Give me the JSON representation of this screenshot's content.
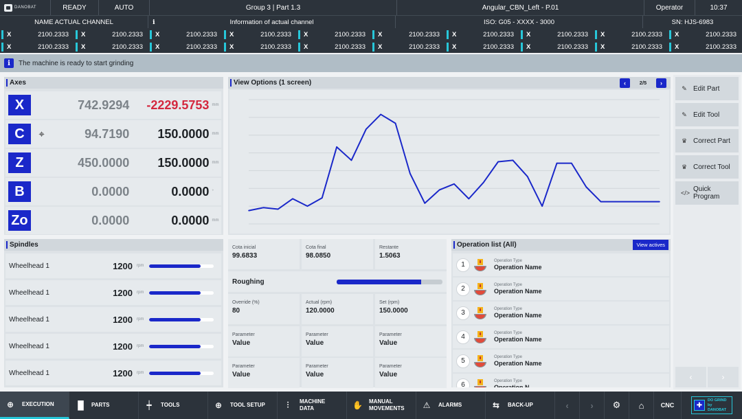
{
  "topbar": {
    "logo_text": "DANOBAT",
    "status": "READY",
    "mode": "AUTO",
    "group_part": "Group 3 | Part 1.3",
    "program": "Angular_CBN_Left - P.01",
    "user": "Operator",
    "time": "10:37"
  },
  "row2": {
    "channel": "NAME ACTUAL CHANNEL",
    "info_icon": "i",
    "info": "Information of actual channel",
    "iso": "ISO: G05 - XXXX - 3000",
    "sn": "SN: HJS-6983"
  },
  "coords": {
    "rows": [
      [
        {
          "axis": "X",
          "value": "2100.2333"
        },
        {
          "axis": "X",
          "value": "2100.2333"
        },
        {
          "axis": "X",
          "value": "2100.2333"
        },
        {
          "axis": "X",
          "value": "2100.2333"
        },
        {
          "axis": "X",
          "value": "2100.2333"
        },
        {
          "axis": "X",
          "value": "2100.2333"
        },
        {
          "axis": "X",
          "value": "2100.2333"
        },
        {
          "axis": "X",
          "value": "2100.2333"
        },
        {
          "axis": "X",
          "value": "2100.2333"
        },
        {
          "axis": "X",
          "value": "2100.2333"
        }
      ],
      [
        {
          "axis": "X",
          "value": "2100.2333"
        },
        {
          "axis": "X",
          "value": "2100.2333"
        },
        {
          "axis": "X",
          "value": "2100.2333"
        },
        {
          "axis": "X",
          "value": "2100.2333"
        },
        {
          "axis": "X",
          "value": "2100.2333"
        },
        {
          "axis": "X",
          "value": "2100.2333"
        },
        {
          "axis": "X",
          "value": "2100.2333"
        },
        {
          "axis": "X",
          "value": "2100.2333"
        },
        {
          "axis": "X",
          "value": "2100.2333"
        },
        {
          "axis": "X",
          "value": "2100.2333"
        }
      ]
    ]
  },
  "message": {
    "icon": "info-icon",
    "text": "The machine is ready to start grinding"
  },
  "axes": {
    "title": "Axes",
    "items": [
      {
        "name": "X",
        "actual": "742.9294",
        "target": "-2229.5753",
        "unit": "mm",
        "has_target_icon": false
      },
      {
        "name": "C",
        "actual": "94.7190",
        "target": "150.0000",
        "unit": "mm",
        "has_target_icon": true
      },
      {
        "name": "Z",
        "actual": "450.0000",
        "target": "150.0000",
        "unit": "mm",
        "has_target_icon": false
      },
      {
        "name": "B",
        "actual": "0.0000",
        "target": "0.0000",
        "unit": "°",
        "has_target_icon": false
      },
      {
        "name": "Zo",
        "actual": "0.0000",
        "target": "0.0000",
        "unit": "mm",
        "has_target_icon": false
      }
    ]
  },
  "spindles": {
    "title": "Spindles",
    "items": [
      {
        "name": "Wheelhead 1",
        "value": "1200",
        "unit": "rpm",
        "level": 0.8
      },
      {
        "name": "Wheelhead 1",
        "value": "1200",
        "unit": "rpm",
        "level": 0.8
      },
      {
        "name": "Wheelhead 1",
        "value": "1200",
        "unit": "rpm",
        "level": 0.8
      },
      {
        "name": "Wheelhead 1",
        "value": "1200",
        "unit": "rpm",
        "level": 0.8
      },
      {
        "name": "Wheelhead 1",
        "value": "1200",
        "unit": "rpm",
        "level": 0.8
      }
    ]
  },
  "view": {
    "title": "View Options (1 screen)",
    "page": "2/5",
    "prev": "‹",
    "next": "›"
  },
  "chart_data": {
    "type": "line",
    "title": "",
    "xlabel": "",
    "ylabel": "",
    "color": "#1a28c9",
    "grid": true,
    "x": [
      0,
      1,
      2,
      3,
      4,
      5,
      6,
      7,
      8,
      9,
      10,
      11,
      12,
      13,
      14,
      15,
      16,
      17,
      18,
      19,
      20,
      21,
      22,
      23,
      24,
      25,
      26,
      27,
      28
    ],
    "values": [
      4.5,
      5.5,
      5,
      8.5,
      6,
      8.8,
      26,
      21.5,
      32,
      37,
      34,
      17,
      7,
      11.5,
      13.5,
      8.5,
      14,
      21,
      21.5,
      16,
      6,
      20.5,
      20.5,
      12.5,
      7.5,
      7.5,
      7.5,
      7.5,
      7.5
    ],
    "ylim": [
      0,
      42
    ]
  },
  "operation": {
    "cota_inicial_label": "Cota inicial",
    "cota_inicial": "99.6833",
    "cota_final_label": "Cota final",
    "cota_final": "98.0850",
    "restante_label": "Restante",
    "restante": "1.5063",
    "phase": "Roughing",
    "phase_progress": 0.8,
    "override_label": "Override (%)",
    "override": "80",
    "actual_label": "Actual (rpm)",
    "actual": "120.0000",
    "set_label": "Set (rpm)",
    "set": "150.0000",
    "params": [
      {
        "label": "Parameter",
        "value": "Value"
      },
      {
        "label": "Parameter",
        "value": "Value"
      },
      {
        "label": "Parameter",
        "value": "Value"
      },
      {
        "label": "Parameter",
        "value": "Value"
      },
      {
        "label": "Parameter",
        "value": "Value"
      },
      {
        "label": "Parameter",
        "value": "Value"
      }
    ]
  },
  "oplist": {
    "title": "Operation list (All)",
    "view_actives": "View actives",
    "items": [
      {
        "num": "1",
        "type": "Operation Type",
        "name": "Operation Name"
      },
      {
        "num": "2",
        "type": "Operation Type",
        "name": "Operation Name"
      },
      {
        "num": "3",
        "type": "Operation Type",
        "name": "Operation Name"
      },
      {
        "num": "4",
        "type": "Operation Type",
        "name": "Operation Name"
      },
      {
        "num": "5",
        "type": "Operation Type",
        "name": "Operation Name"
      },
      {
        "num": "6",
        "type": "Operation Type",
        "name": "Operation N..."
      }
    ]
  },
  "rbuttons": {
    "edit_part": "Edit Part",
    "edit_tool": "Edit Tool",
    "correct_part": "Correct Part",
    "correct_tool": "Correct Tool",
    "quick_program": "Quick Program"
  },
  "bottom": {
    "execution": "EXECUTION",
    "parts": "PARTS",
    "tools": "TOOLS",
    "tool_setup": "TOOL SETUP",
    "machine_data": "MACHINE DATA",
    "manual_movements": "MANUAL MOVEMENTS",
    "alarms": "ALARMS",
    "backup": "BACK-UP",
    "cnc": "CNC",
    "brand_line1": "DO GRIND",
    "brand_line2": "by DANOBAT"
  }
}
